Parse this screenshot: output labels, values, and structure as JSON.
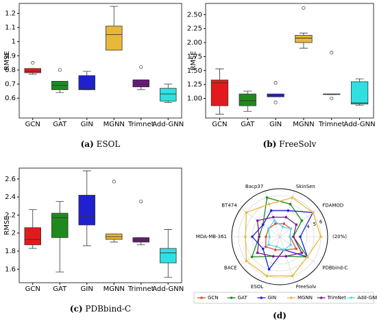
{
  "chart_data": [
    {
      "type": "box",
      "label": "(a)",
      "title": "ESOL",
      "ylabel": "RMSE",
      "categories": [
        "GCN",
        "GAT",
        "GIN",
        "MGNN",
        "Trimnet",
        "Add-GNN"
      ],
      "ylim": [
        0.46,
        1.27
      ],
      "yticks": [
        0.6,
        0.7,
        0.8,
        0.9,
        1.0,
        1.1,
        1.2
      ],
      "series": [
        {
          "color": "#e31a1c",
          "min": 0.77,
          "q1": 0.78,
          "median": 0.79,
          "q3": 0.81,
          "max": 0.81,
          "outliers": [
            0.85
          ]
        },
        {
          "color": "#1e8a1e",
          "min": 0.64,
          "q1": 0.66,
          "median": 0.69,
          "q3": 0.72,
          "max": 0.72,
          "outliers": [
            0.8
          ]
        },
        {
          "color": "#2020d0",
          "min": 0.66,
          "q1": 0.66,
          "median": 0.67,
          "q3": 0.76,
          "max": 0.79,
          "outliers": []
        },
        {
          "color": "#e8b83a",
          "min": 0.94,
          "q1": 0.94,
          "median": 1.05,
          "q3": 1.11,
          "max": 1.25,
          "outliers": []
        },
        {
          "color": "#6a1a7a",
          "min": 0.66,
          "q1": 0.68,
          "median": 0.7,
          "q3": 0.73,
          "max": 0.73,
          "outliers": [
            0.82
          ]
        },
        {
          "color": "#2ee0e0",
          "min": 0.57,
          "q1": 0.58,
          "median": 0.63,
          "q3": 0.67,
          "max": 0.7,
          "outliers": []
        }
      ]
    },
    {
      "type": "box",
      "label": "(b)",
      "title": "FreeSolv",
      "ylabel": "RMSE",
      "categories": [
        "GCN",
        "GAT",
        "GIN",
        "MGNN",
        "Trimnet",
        "Add-GNN"
      ],
      "ylim": [
        0.65,
        2.7
      ],
      "yticks": [
        {
          "value": 1,
          "label": "1.00"
        },
        {
          "value": 1.25,
          "label": "1.25"
        },
        {
          "value": 1.5,
          "label": "1.50"
        },
        {
          "value": 1.75,
          "label": "1.75"
        },
        {
          "value": 2,
          "label": "2.00"
        },
        {
          "value": 2.25,
          "label": "2.25"
        },
        {
          "value": 2.5,
          "label": "2.50"
        }
      ],
      "series": [
        {
          "color": "#e31a1c",
          "min": 0.72,
          "q1": 0.87,
          "median": 1.28,
          "q3": 1.33,
          "max": 1.53,
          "outliers": []
        },
        {
          "color": "#1e8a1e",
          "min": 0.77,
          "q1": 0.87,
          "median": 0.96,
          "q3": 1.08,
          "max": 1.13,
          "outliers": []
        },
        {
          "color": "#2020d0",
          "min": 1.03,
          "q1": 1.03,
          "median": 1.05,
          "q3": 1.08,
          "max": 1.08,
          "outliers": [
            0.93,
            1.28
          ]
        },
        {
          "color": "#e8b83a",
          "min": 1.9,
          "q1": 2.0,
          "median": 2.08,
          "q3": 2.13,
          "max": 2.17,
          "outliers": [
            2.62
          ]
        },
        {
          "color": "#6a1a7a",
          "min": 1.07,
          "q1": 1.07,
          "median": 1.08,
          "q3": 1.08,
          "max": 1.08,
          "outliers": [
            1.0,
            1.82
          ]
        },
        {
          "color": "#2ee0e0",
          "min": 0.88,
          "q1": 0.9,
          "median": 0.92,
          "q3": 1.3,
          "max": 1.35,
          "outliers": []
        }
      ]
    },
    {
      "type": "box",
      "label": "(c)",
      "title": "PDBbind-C",
      "ylabel": "RMSE",
      "categories": [
        "GCN",
        "GAT",
        "GIN",
        "MGNN",
        "Trimnet",
        "Add-GNN"
      ],
      "ylim": [
        1.45,
        2.72
      ],
      "yticks": [
        1.6,
        1.8,
        2.0,
        2.2,
        2.4,
        2.6
      ],
      "series": [
        {
          "color": "#e31a1c",
          "min": 1.83,
          "q1": 1.87,
          "median": 1.93,
          "q3": 2.06,
          "max": 2.26,
          "outliers": []
        },
        {
          "color": "#1e8a1e",
          "min": 1.57,
          "q1": 1.95,
          "median": 2.17,
          "q3": 2.22,
          "max": 2.35,
          "outliers": []
        },
        {
          "color": "#2020d0",
          "min": 1.86,
          "q1": 2.09,
          "median": 2.18,
          "q3": 2.42,
          "max": 2.69,
          "outliers": []
        },
        {
          "color": "#e8b83a",
          "min": 1.9,
          "q1": 1.93,
          "median": 1.96,
          "q3": 1.99,
          "max": 1.99,
          "outliers": [
            2.57
          ]
        },
        {
          "color": "#6a1a7a",
          "min": 1.87,
          "q1": 1.9,
          "median": 1.92,
          "q3": 1.95,
          "max": 1.95,
          "outliers": [
            2.35
          ]
        },
        {
          "color": "#2ee0e0",
          "min": 1.51,
          "q1": 1.67,
          "median": 1.78,
          "q3": 1.83,
          "max": 2.04,
          "outliers": []
        }
      ]
    },
    {
      "type": "radar",
      "label": "(d)",
      "categories": [
        "SkinSen",
        "FDAMOD",
        "(20%)",
        "PDBbind-C",
        "FreeSolv",
        "ESOL",
        "BACE",
        "MDA-MB-361",
        "BT474",
        "Bacp37"
      ],
      "rlim": [
        0,
        7
      ],
      "rticks": [
        4,
        5,
        6
      ],
      "series": [
        {
          "name": "GCN",
          "color": "#e04a2a",
          "values": [
            2,
            2,
            1.5,
            3,
            2,
            2,
            2.5,
            2,
            2,
            2
          ]
        },
        {
          "name": "GAT",
          "color": "#1e8a1e",
          "values": [
            5,
            4,
            2,
            5,
            3,
            3,
            5,
            3,
            3,
            6
          ]
        },
        {
          "name": "GIN",
          "color": "#2020d0",
          "values": [
            4,
            6,
            3,
            5,
            2,
            5,
            3,
            4,
            3,
            4
          ]
        },
        {
          "name": "MGNN",
          "color": "#e8b83a",
          "values": [
            6,
            6,
            6,
            5,
            6,
            6,
            6,
            5,
            6,
            5
          ]
        },
        {
          "name": "TrimNet",
          "color": "#7a1a8a",
          "values": [
            3,
            3,
            2,
            4,
            3,
            3,
            4,
            3,
            4,
            3
          ]
        },
        {
          "name": "Add-GNN",
          "color": "#5ad8ea",
          "values": [
            1.5,
            2,
            1.5,
            2,
            2,
            1.5,
            2,
            1.5,
            2,
            2.5
          ]
        }
      ]
    }
  ]
}
